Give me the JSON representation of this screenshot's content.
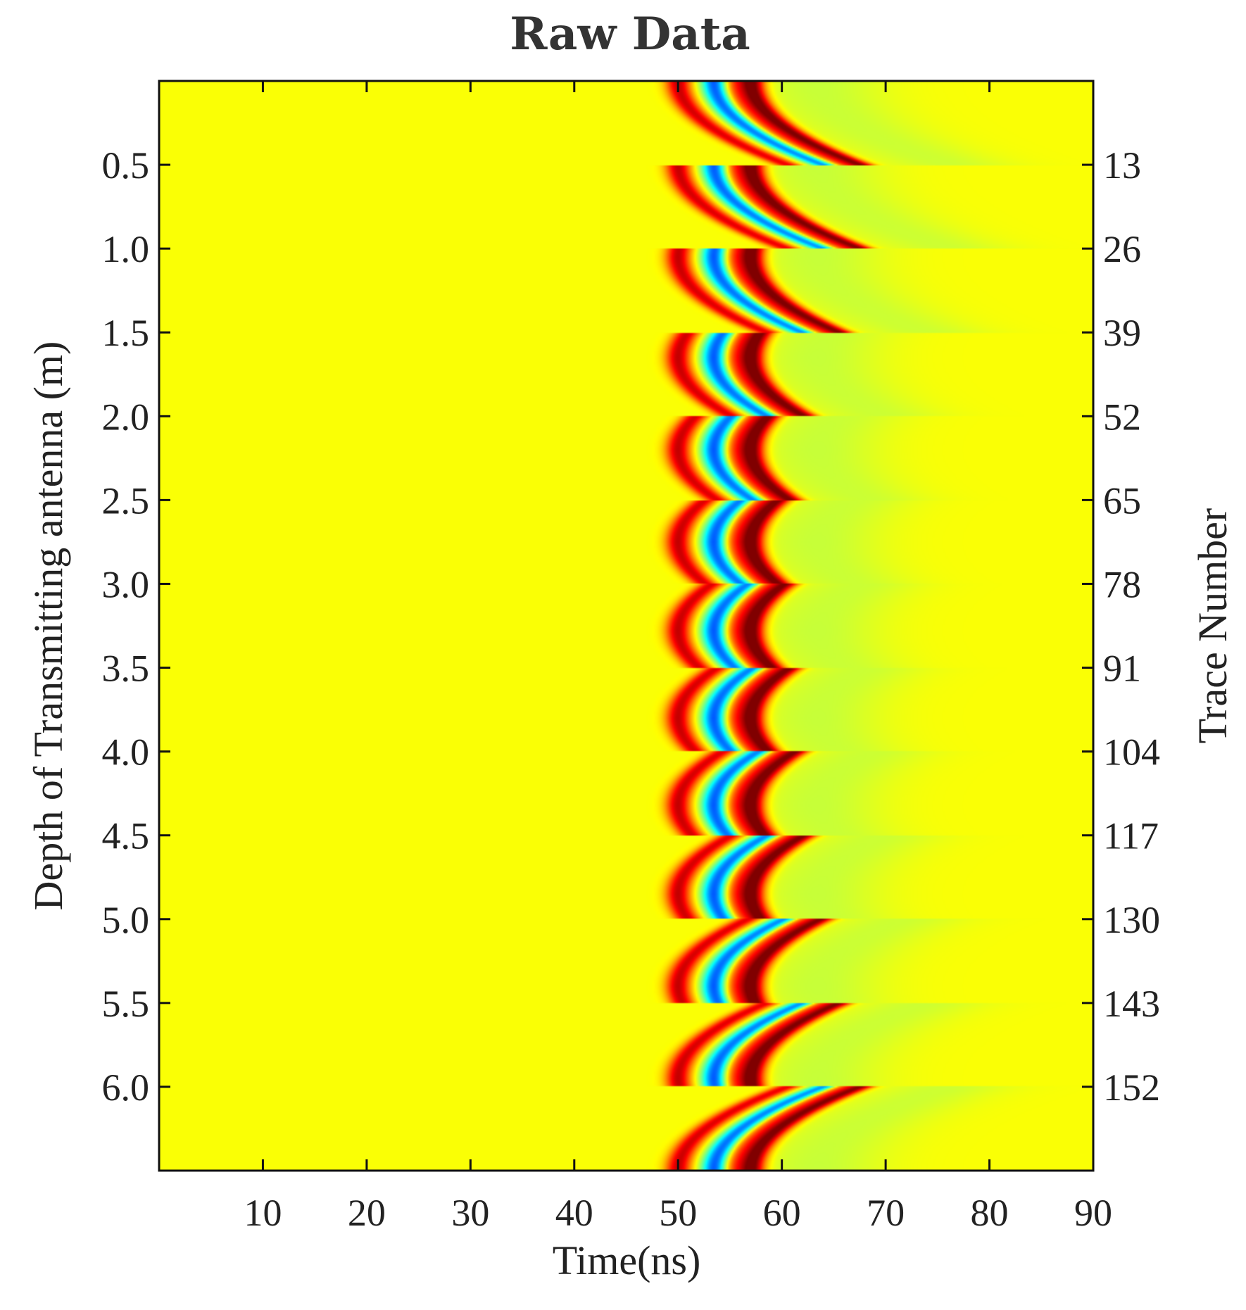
{
  "chart_data": {
    "type": "heatmap",
    "title": "Raw Data",
    "xlabel": "Time(ns)",
    "ylabel": "Depth of Transmitting antenna (m)",
    "y2label": "Trace Number",
    "xlim": [
      0,
      90
    ],
    "ylim": [
      0,
      6.5
    ],
    "x_ticks": [
      10,
      20,
      30,
      40,
      50,
      60,
      70,
      80,
      90
    ],
    "x_tick_labels": [
      "10",
      "20",
      "30",
      "40",
      "50",
      "60",
      "70",
      "80",
      "90"
    ],
    "y_ticks": [
      0.5,
      1.0,
      1.5,
      2.0,
      2.5,
      3.0,
      3.5,
      4.0,
      4.5,
      5.0,
      5.5,
      6.0
    ],
    "y_tick_labels": [
      "0.5",
      "1.0",
      "1.5",
      "2.0",
      "2.5",
      "3.0",
      "3.5",
      "4.0",
      "4.5",
      "5.0",
      "5.5",
      "6.0"
    ],
    "y2_ticks": [
      0.5,
      1.0,
      1.5,
      2.0,
      2.5,
      3.0,
      3.5,
      4.0,
      4.5,
      5.0,
      5.5,
      6.0
    ],
    "y2_tick_labels": [
      "13",
      "26",
      "39",
      "52",
      "65",
      "78",
      "91",
      "104",
      "117",
      "130",
      "143",
      "152"
    ],
    "colormap": "jet",
    "background_color": "#eef815",
    "wavelet": {
      "onset_ns": 47,
      "base_center_ns": 53.5,
      "components": [
        {
          "offset_ns": -3.5,
          "amplitude": 0.75
        },
        {
          "offset_ns": 0,
          "amplitude": -1.0
        },
        {
          "offset_ns": 1.8,
          "amplitude": 0.45
        },
        {
          "offset_ns": 3.6,
          "amplitude": 1.0
        }
      ]
    },
    "receiver_gathers": [
      {
        "depth_start": 0.0,
        "depth_end": 0.5,
        "apex_depth": 0.0
      },
      {
        "depth_start": 0.5,
        "depth_end": 1.0,
        "apex_depth": 0.5
      },
      {
        "depth_start": 1.0,
        "depth_end": 1.5,
        "apex_depth": 1.05
      },
      {
        "depth_start": 1.5,
        "depth_end": 2.0,
        "apex_depth": 1.65
      },
      {
        "depth_start": 2.0,
        "depth_end": 2.5,
        "apex_depth": 2.2
      },
      {
        "depth_start": 2.5,
        "depth_end": 3.0,
        "apex_depth": 2.75
      },
      {
        "depth_start": 3.0,
        "depth_end": 3.5,
        "apex_depth": 3.28
      },
      {
        "depth_start": 3.5,
        "depth_end": 4.0,
        "apex_depth": 3.8
      },
      {
        "depth_start": 4.0,
        "depth_end": 4.5,
        "apex_depth": 4.32
      },
      {
        "depth_start": 4.5,
        "depth_end": 5.0,
        "apex_depth": 4.85
      },
      {
        "depth_start": 5.0,
        "depth_end": 5.5,
        "apex_depth": 5.4
      },
      {
        "depth_start": 5.5,
        "depth_end": 6.0,
        "apex_depth": 5.95
      },
      {
        "depth_start": 6.0,
        "depth_end": 6.5,
        "apex_depth": 6.5
      }
    ]
  }
}
